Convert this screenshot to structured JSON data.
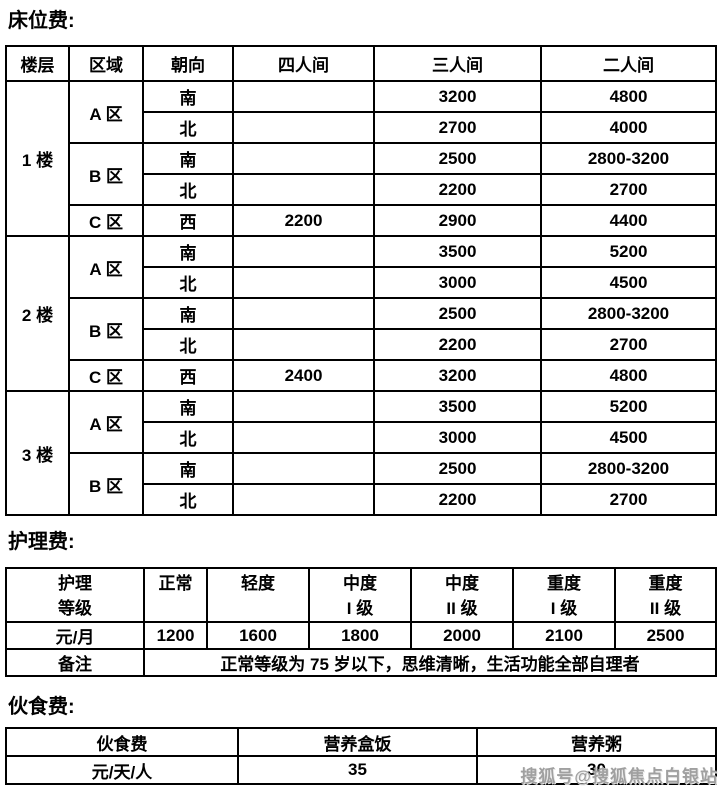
{
  "page": {
    "background": "#ffffff",
    "text_color": "#000000",
    "border_color": "#000000",
    "watermark_color": "#a0a0a0"
  },
  "sections": {
    "bed_fee": {
      "title": "床位费:",
      "table": {
        "headers": [
          "楼层",
          "区域",
          "朝向",
          "四人间",
          "三人间",
          "二人间"
        ],
        "floors": [
          {
            "floor": "1 楼",
            "zones": [
              {
                "zone": "A 区",
                "rows": [
                  {
                    "facing": "南",
                    "four": "",
                    "three": "3200",
                    "two": "4800"
                  },
                  {
                    "facing": "北",
                    "four": "",
                    "three": "2700",
                    "two": "4000"
                  }
                ]
              },
              {
                "zone": "B 区",
                "rows": [
                  {
                    "facing": "南",
                    "four": "",
                    "three": "2500",
                    "two": "2800-3200"
                  },
                  {
                    "facing": "北",
                    "four": "",
                    "three": "2200",
                    "two": "2700"
                  }
                ]
              },
              {
                "zone": "C 区",
                "rows": [
                  {
                    "facing": "西",
                    "four": "2200",
                    "three": "2900",
                    "two": "4400"
                  }
                ]
              }
            ]
          },
          {
            "floor": "2 楼",
            "zones": [
              {
                "zone": "A 区",
                "rows": [
                  {
                    "facing": "南",
                    "four": "",
                    "three": "3500",
                    "two": "5200"
                  },
                  {
                    "facing": "北",
                    "four": "",
                    "three": "3000",
                    "two": "4500"
                  }
                ]
              },
              {
                "zone": "B 区",
                "rows": [
                  {
                    "facing": "南",
                    "four": "",
                    "three": "2500",
                    "two": "2800-3200"
                  },
                  {
                    "facing": "北",
                    "four": "",
                    "three": "2200",
                    "two": "2700"
                  }
                ]
              },
              {
                "zone": "C 区",
                "rows": [
                  {
                    "facing": "西",
                    "four": "2400",
                    "three": "3200",
                    "two": "4800"
                  }
                ]
              }
            ]
          },
          {
            "floor": "3 楼",
            "zones": [
              {
                "zone": "A 区",
                "rows": [
                  {
                    "facing": "南",
                    "four": "",
                    "three": "3500",
                    "two": "5200"
                  },
                  {
                    "facing": "北",
                    "four": "",
                    "three": "3000",
                    "two": "4500"
                  }
                ]
              },
              {
                "zone": "B 区",
                "rows": [
                  {
                    "facing": "南",
                    "four": "",
                    "three": "2500",
                    "two": "2800-3200"
                  },
                  {
                    "facing": "北",
                    "four": "",
                    "three": "2200",
                    "two": "2700"
                  }
                ]
              }
            ]
          }
        ]
      }
    },
    "nursing_fee": {
      "title": "护理费:",
      "table": {
        "level_header": [
          "护理",
          "等级"
        ],
        "levels": [
          {
            "line1": "正常",
            "line2": ""
          },
          {
            "line1": "轻度",
            "line2": ""
          },
          {
            "line1": "中度",
            "line2": "I 级"
          },
          {
            "line1": "中度",
            "line2": "II 级"
          },
          {
            "line1": "重度",
            "line2": "I 级"
          },
          {
            "line1": "重度",
            "line2": "II 级"
          }
        ],
        "price_row_label": "元/月",
        "prices": [
          "1200",
          "1600",
          "1800",
          "2000",
          "2100",
          "2500"
        ],
        "note_label": "备注",
        "note": "正常等级为 75 岁以下，思维清晰，生活功能全部自理者"
      }
    },
    "meal_fee": {
      "title": "伙食费:",
      "table": {
        "headers": [
          "伙食费",
          "营养盒饭",
          "营养粥"
        ],
        "row_label": "元/天/人",
        "values": [
          "35",
          "30"
        ]
      }
    }
  },
  "watermark": {
    "text": "搜狐号@搜狐焦点白银站"
  }
}
